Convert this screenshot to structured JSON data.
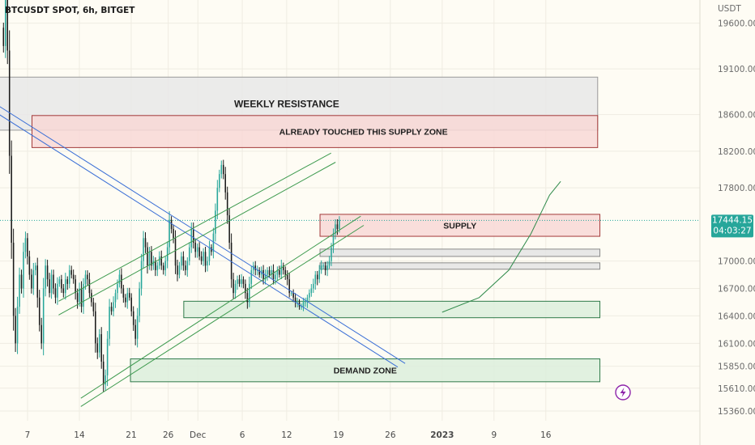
{
  "header": {
    "symbol_text": "BTCUSDT SPOT, 6h, BITGET",
    "currency": "USDT"
  },
  "chart_data": {
    "type": "candlestick",
    "title": "BTCUSDT SPOT, 6h, BITGET",
    "ylabel": "USDT",
    "ylim": [
      15200,
      19850
    ],
    "x_ticks": [
      {
        "label": "7",
        "day": 7
      },
      {
        "label": "14",
        "day": 14
      },
      {
        "label": "21",
        "day": 21
      },
      {
        "label": "26",
        "day": 26
      },
      {
        "label": "Dec",
        "day": 30
      },
      {
        "label": "6",
        "day": 36
      },
      {
        "label": "12",
        "day": 42
      },
      {
        "label": "19",
        "day": 49
      },
      {
        "label": "26",
        "day": 56
      },
      {
        "label": "2023",
        "day": 63,
        "bold": true
      },
      {
        "label": "9",
        "day": 70
      },
      {
        "label": "16",
        "day": 77
      }
    ],
    "y_ticks": [
      19600,
      19100,
      18600,
      18200,
      17800,
      17000,
      16700,
      16400,
      16100,
      15850,
      15610,
      15360
    ],
    "last_price": {
      "value": 17444.15,
      "label": "17444.15",
      "countdown": "04:03:27"
    },
    "zones": [
      {
        "name": "weekly-resistance",
        "label": "WEEKLY RESISTANCE",
        "x_from": 0,
        "x_to": 84,
        "y_from": 18430,
        "y_to": 19010,
        "fill": "#e7e7e7",
        "stroke": "#9a9a9a"
      },
      {
        "name": "touched-supply",
        "label": "ALREADY TOUCHED THIS SUPPLY ZONE",
        "x_from": 7.6,
        "x_to": 84,
        "y_from": 18240,
        "y_to": 18590,
        "fill": "#f8d8d6",
        "stroke": "#a33a3a"
      },
      {
        "name": "supply",
        "label": "SUPPLY",
        "x_from": 46.5,
        "x_to": 84.3,
        "y_from": 17270,
        "y_to": 17510,
        "fill": "#f8d8d6",
        "stroke": "#a33a3a"
      },
      {
        "name": "gray-band-1",
        "label": "",
        "x_from": 46.5,
        "x_to": 84.3,
        "y_from": 17050,
        "y_to": 17130,
        "fill": "#e4e4e4",
        "stroke": "#8a8a8a"
      },
      {
        "name": "gray-band-2",
        "label": "",
        "x_from": 46.5,
        "x_to": 84.3,
        "y_from": 16910,
        "y_to": 16980,
        "fill": "#e4e4e4",
        "stroke": "#8a8a8a"
      },
      {
        "name": "green-band",
        "label": "",
        "x_from": 28.1,
        "x_to": 84.3,
        "y_from": 16380,
        "y_to": 16560,
        "fill": "#dcefdc",
        "stroke": "#2f7a4a"
      },
      {
        "name": "demand-zone",
        "label": "DEMAND ZONE",
        "x_from": 20.9,
        "x_to": 84.3,
        "y_from": 15680,
        "y_to": 15930,
        "fill": "#dcefdc",
        "stroke": "#2f7a4a"
      }
    ],
    "trendlines": [
      {
        "name": "blue-down-1",
        "color": "#3b6fd6",
        "points": [
          [
            -0.5,
            18880
          ],
          [
            58,
            15880
          ]
        ]
      },
      {
        "name": "blue-down-2",
        "color": "#3b6fd6",
        "points": [
          [
            -0.5,
            18790
          ],
          [
            57,
            15840
          ]
        ]
      },
      {
        "name": "green-channel-1",
        "color": "#3d9a4e",
        "points": [
          [
            11.2,
            16560
          ],
          [
            48,
            18180
          ]
        ]
      },
      {
        "name": "green-channel-2",
        "color": "#3d9a4e",
        "points": [
          [
            11.2,
            16410
          ],
          [
            48.6,
            18080
          ]
        ]
      },
      {
        "name": "green-channel-3",
        "color": "#3d9a4e",
        "points": [
          [
            14.2,
            15500
          ],
          [
            52,
            17490
          ]
        ]
      },
      {
        "name": "green-channel-4",
        "color": "#3d9a4e",
        "points": [
          [
            14.2,
            15410
          ],
          [
            52.4,
            17390
          ]
        ]
      },
      {
        "name": "green-parabola",
        "color": "#2f8a4a",
        "points": [
          [
            63,
            16440
          ],
          [
            68,
            16600
          ],
          [
            72,
            16900
          ],
          [
            75,
            17300
          ],
          [
            77.5,
            17720
          ],
          [
            79,
            17870
          ]
        ]
      }
    ],
    "closes": [
      19350,
      19900,
      19300,
      18150,
      17200,
      16400,
      16100,
      16500,
      16850,
      16700,
      17100,
      17250,
      17050,
      16850,
      16700,
      16900,
      16950,
      16600,
      16300,
      16100,
      16700,
      16950,
      16800,
      16650,
      16850,
      16700,
      16600,
      16750,
      16800,
      16700,
      16650,
      16800,
      16750,
      16900,
      16850,
      16800,
      16650,
      16550,
      16700,
      16500,
      16750,
      16850,
      16800,
      16650,
      16550,
      16450,
      16100,
      16000,
      16200,
      15900,
      15650,
      15750,
      16150,
      16500,
      16450,
      16550,
      16650,
      16750,
      16850,
      16700,
      16600,
      16550,
      16650,
      16600,
      16450,
      16300,
      16150,
      16400,
      16700,
      17000,
      17250,
      17150,
      16950,
      17100,
      16950,
      17000,
      16900,
      16950,
      17050,
      16950,
      16900,
      17000,
      17150,
      17450,
      17350,
      17250,
      16950,
      16850,
      16950,
      17050,
      16950,
      16900,
      17000,
      17150,
      17350,
      17200,
      17100,
      17150,
      17050,
      17000,
      17100,
      16950,
      17000,
      17150,
      17100,
      17300,
      17550,
      17800,
      17950,
      18050,
      17950,
      17750,
      17500,
      17200,
      16800,
      16650,
      16750,
      16800,
      16750,
      16800,
      16750,
      16650,
      16550,
      16750,
      16900,
      16950,
      16900,
      16900,
      16850,
      16900,
      16800,
      16850,
      16900,
      16850,
      16900,
      16800,
      16850,
      16900,
      16850,
      16950,
      16900,
      16850,
      16800,
      16650,
      16650,
      16600,
      16550,
      16550,
      16500,
      16500,
      16550,
      16550,
      16600,
      16650,
      16700,
      16750,
      16850,
      16800,
      16900,
      16950,
      16950,
      16900,
      16950,
      17000,
      17150,
      17300,
      17400,
      17350,
      17450
    ]
  },
  "watermark": {
    "icon": "lightning-icon"
  },
  "colors": {
    "up": "#26a69a",
    "down": "#1a1a1a",
    "price_label": "#26a69a"
  }
}
